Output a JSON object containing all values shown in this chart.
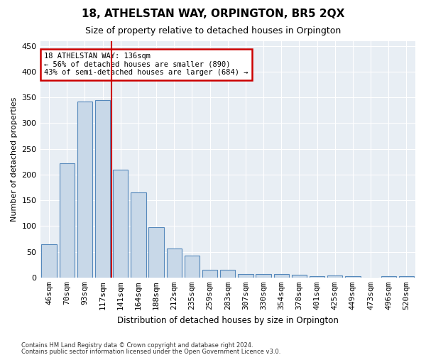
{
  "title": "18, ATHELSTAN WAY, ORPINGTON, BR5 2QX",
  "subtitle": "Size of property relative to detached houses in Orpington",
  "xlabel": "Distribution of detached houses by size in Orpington",
  "ylabel": "Number of detached properties",
  "bar_color": "#c8d8e8",
  "bar_edge_color": "#5588bb",
  "background_color": "#e8eef4",
  "categories": [
    "46sqm",
    "70sqm",
    "93sqm",
    "117sqm",
    "141sqm",
    "164sqm",
    "188sqm",
    "212sqm",
    "235sqm",
    "259sqm",
    "283sqm",
    "307sqm",
    "330sqm",
    "354sqm",
    "378sqm",
    "401sqm",
    "425sqm",
    "449sqm",
    "473sqm",
    "496sqm",
    "520sqm"
  ],
  "values": [
    65,
    222,
    342,
    345,
    210,
    165,
    98,
    56,
    43,
    15,
    15,
    7,
    6,
    6,
    5,
    2,
    4,
    2,
    0,
    3,
    2
  ],
  "vline_x": 3.5,
  "annotation_line1": "18 ATHELSTAN WAY: 136sqm",
  "annotation_line2": "← 56% of detached houses are smaller (890)",
  "annotation_line3": "43% of semi-detached houses are larger (684) →",
  "annotation_box_color": "#ffffff",
  "annotation_box_edge_color": "#cc0000",
  "vline_color": "#cc0000",
  "ylim": [
    0,
    460
  ],
  "yticks": [
    0,
    50,
    100,
    150,
    200,
    250,
    300,
    350,
    400,
    450
  ],
  "footer1": "Contains HM Land Registry data © Crown copyright and database right 2024.",
  "footer2": "Contains public sector information licensed under the Open Government Licence v3.0."
}
